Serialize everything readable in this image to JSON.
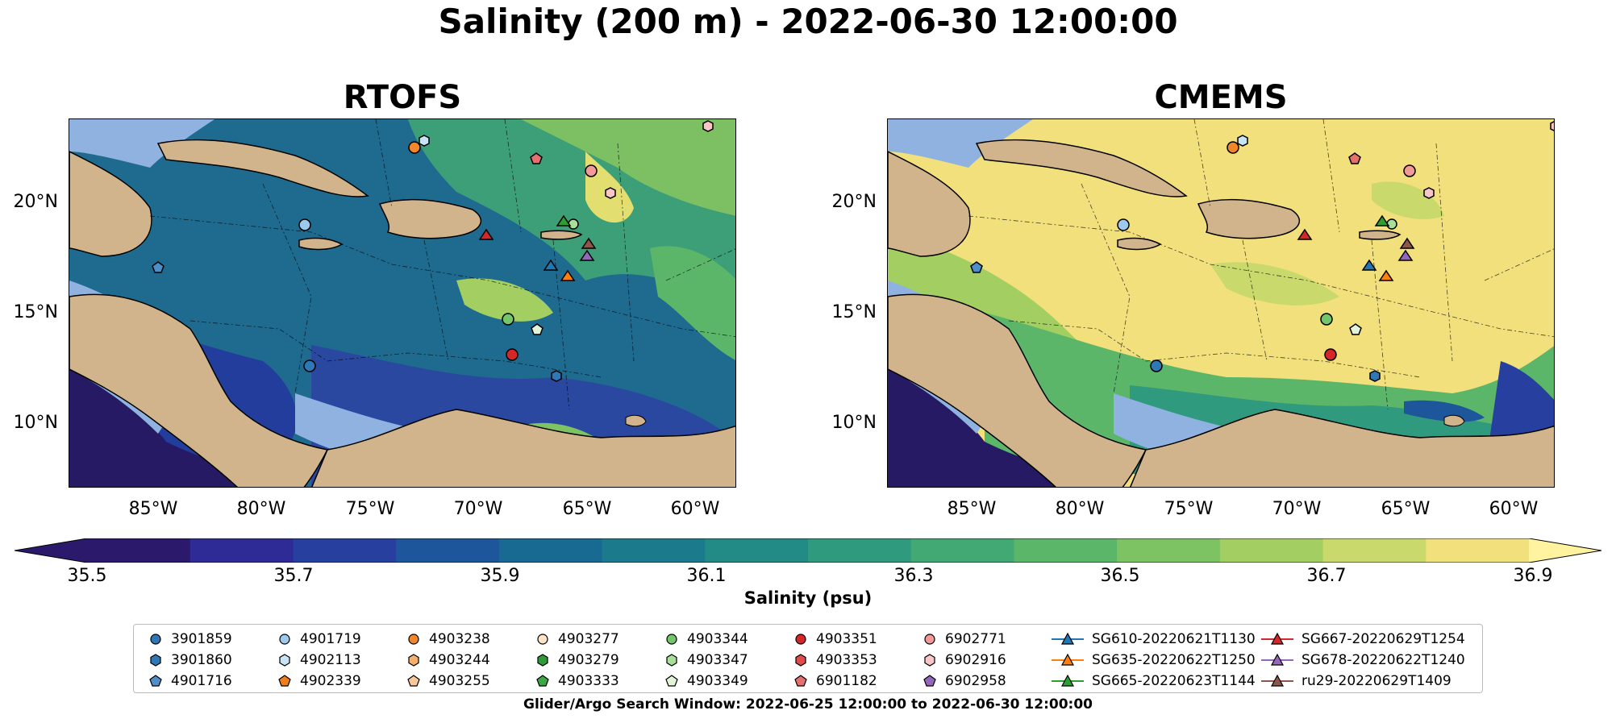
{
  "title": "Salinity (200 m) - 2022-06-30 12:00:00",
  "panels": [
    {
      "title": "RTOFS"
    },
    {
      "title": "CMEMS"
    }
  ],
  "axes": {
    "y_ticks": [
      "20°N",
      "15°N",
      "10°N"
    ],
    "x_ticks": [
      "85°W",
      "80°W",
      "75°W",
      "70°W",
      "65°W",
      "60°W"
    ]
  },
  "colorbar": {
    "label": "Salinity (psu)",
    "ticks": [
      "35.5",
      "35.7",
      "35.9",
      "36.1",
      "36.3",
      "36.5",
      "36.7",
      "36.9"
    ],
    "colors": [
      "#2b1a6b",
      "#2e2b96",
      "#27409f",
      "#1d569a",
      "#196a92",
      "#1b7b8c",
      "#238b86",
      "#2f9a7e",
      "#43a974",
      "#5cb66a",
      "#7dc263",
      "#a3cf62",
      "#c9d96b",
      "#f1e07c"
    ]
  },
  "legend": {
    "items": [
      {
        "label": "3901859",
        "marker": "circle",
        "color": "#2f78b5"
      },
      {
        "label": "3901860",
        "marker": "hexagon",
        "color": "#2f78b5"
      },
      {
        "label": "4901716",
        "marker": "pentagon",
        "color": "#4e8fc9"
      },
      {
        "label": "4901719",
        "marker": "circle",
        "color": "#9cc9ec"
      },
      {
        "label": "4902113",
        "marker": "hexagon",
        "color": "#c6e4f6"
      },
      {
        "label": "4902339",
        "marker": "pentagon",
        "color": "#f07f1b"
      },
      {
        "label": "4903238",
        "marker": "circle",
        "color": "#f2872a"
      },
      {
        "label": "4903244",
        "marker": "hexagon",
        "color": "#f6b06e"
      },
      {
        "label": "4903255",
        "marker": "pentagon",
        "color": "#f8c89a"
      },
      {
        "label": "4903277",
        "marker": "circle",
        "color": "#fde3c8"
      },
      {
        "label": "4903279",
        "marker": "hexagon",
        "color": "#2f9b38"
      },
      {
        "label": "4903333",
        "marker": "pentagon",
        "color": "#3aa843"
      },
      {
        "label": "4903344",
        "marker": "circle",
        "color": "#73c66a"
      },
      {
        "label": "4903347",
        "marker": "hexagon",
        "color": "#a8e09a"
      },
      {
        "label": "4903349",
        "marker": "pentagon",
        "color": "#e2f5d9"
      },
      {
        "label": "4903351",
        "marker": "circle",
        "color": "#d62728"
      },
      {
        "label": "4903353",
        "marker": "hexagon",
        "color": "#e04b4b"
      },
      {
        "label": "6901182",
        "marker": "pentagon",
        "color": "#e86f70"
      },
      {
        "label": "6902771",
        "marker": "circle",
        "color": "#f29a9a"
      },
      {
        "label": "6902916",
        "marker": "hexagon",
        "color": "#f8c6c6"
      },
      {
        "label": "6902958",
        "marker": "pentagon",
        "color": "#9467bd"
      },
      {
        "label": "SG610-20220621T1130",
        "marker": "triangle",
        "color": "#1f77b4"
      },
      {
        "label": "SG635-20220622T1250",
        "marker": "triangle",
        "color": "#ff7f0e"
      },
      {
        "label": "SG665-20220623T1144",
        "marker": "triangle",
        "color": "#2ca02c"
      },
      {
        "label": "SG667-20220629T1254",
        "marker": "triangle",
        "color": "#d62728"
      },
      {
        "label": "SG678-20220622T1240",
        "marker": "triangle",
        "color": "#9467bd"
      },
      {
        "label": "ru29-20220629T1409",
        "marker": "triangle",
        "color": "#8c564b"
      }
    ]
  },
  "footer": "Glider/Argo Search Window: 2022-06-25 12:00:00 to 2022-06-30 12:00:00",
  "map_colors": {
    "land": "#d2b48c",
    "shelf": "#8fb2e0",
    "deep": "#251a63"
  }
}
